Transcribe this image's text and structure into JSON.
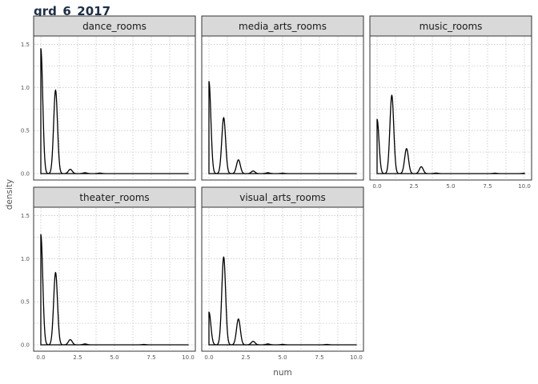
{
  "figure": {
    "title": "grd_6_2017"
  },
  "chart_data": {
    "type": "line",
    "subtype": "density",
    "title": "grd_6_2017",
    "xlabel": "num",
    "ylabel": "density",
    "xlim": [
      0,
      10
    ],
    "ylim": [
      0,
      1.55
    ],
    "x_ticks": [
      0,
      2.5,
      5,
      7.5,
      10
    ],
    "x_tick_labels": [
      "0.0",
      "2.5",
      "5.0",
      "7.5",
      "10.0"
    ],
    "y_ticks": [
      0,
      0.5,
      1,
      1.5
    ],
    "y_tick_labels": [
      "0.0",
      "0.5",
      "1.0",
      "1.5"
    ],
    "grid": true,
    "facet_layout": {
      "columns": 3,
      "rows": 2
    },
    "facets": [
      {
        "name": "dance_rooms",
        "peaks": [
          {
            "x": 0,
            "height": 1.45,
            "sd": 0.13
          },
          {
            "x": 1,
            "height": 0.97,
            "sd": 0.13
          },
          {
            "x": 2,
            "height": 0.05,
            "sd": 0.13
          },
          {
            "x": 3,
            "height": 0.01,
            "sd": 0.13
          },
          {
            "x": 4,
            "height": 0.006,
            "sd": 0.13
          }
        ]
      },
      {
        "name": "media_arts_rooms",
        "peaks": [
          {
            "x": 0,
            "height": 1.07,
            "sd": 0.13
          },
          {
            "x": 1,
            "height": 0.65,
            "sd": 0.13
          },
          {
            "x": 2,
            "height": 0.16,
            "sd": 0.13
          },
          {
            "x": 3,
            "height": 0.03,
            "sd": 0.13
          },
          {
            "x": 4,
            "height": 0.01,
            "sd": 0.13
          },
          {
            "x": 5,
            "height": 0.005,
            "sd": 0.13
          }
        ]
      },
      {
        "name": "music_rooms",
        "peaks": [
          {
            "x": 0,
            "height": 0.63,
            "sd": 0.13
          },
          {
            "x": 1,
            "height": 0.91,
            "sd": 0.13
          },
          {
            "x": 2,
            "height": 0.29,
            "sd": 0.13
          },
          {
            "x": 3,
            "height": 0.08,
            "sd": 0.13
          },
          {
            "x": 4,
            "height": 0.006,
            "sd": 0.13
          },
          {
            "x": 8,
            "height": 0.005,
            "sd": 0.13
          },
          {
            "x": 10,
            "height": 0.005,
            "sd": 0.13
          }
        ]
      },
      {
        "name": "theater_rooms",
        "peaks": [
          {
            "x": 0,
            "height": 1.28,
            "sd": 0.13
          },
          {
            "x": 1,
            "height": 0.84,
            "sd": 0.13
          },
          {
            "x": 2,
            "height": 0.06,
            "sd": 0.13
          },
          {
            "x": 3,
            "height": 0.01,
            "sd": 0.13
          },
          {
            "x": 7,
            "height": 0.004,
            "sd": 0.13
          }
        ]
      },
      {
        "name": "visual_arts_rooms",
        "peaks": [
          {
            "x": 0,
            "height": 0.38,
            "sd": 0.13
          },
          {
            "x": 1,
            "height": 1.02,
            "sd": 0.13
          },
          {
            "x": 2,
            "height": 0.3,
            "sd": 0.13
          },
          {
            "x": 3,
            "height": 0.04,
            "sd": 0.13
          },
          {
            "x": 4,
            "height": 0.01,
            "sd": 0.13
          },
          {
            "x": 5,
            "height": 0.005,
            "sd": 0.13
          },
          {
            "x": 8,
            "height": 0.004,
            "sd": 0.13
          }
        ]
      }
    ]
  },
  "colors": {
    "line": "#000000",
    "strip_fill": "#d9d9d9",
    "panel_border": "#333333",
    "grid": "#bdbdbd",
    "text": "#555555"
  }
}
